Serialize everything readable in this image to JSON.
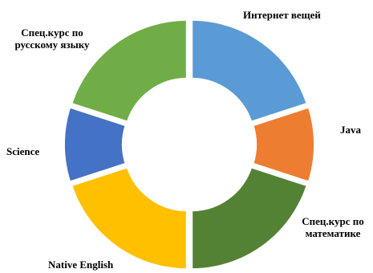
{
  "chart_data": {
    "type": "pie",
    "donut": true,
    "slices": [
      {
        "label": "Интернет вещей",
        "value": 20,
        "color": "#5B9BD5"
      },
      {
        "label": "Java",
        "value": 10,
        "color": "#ED7D31"
      },
      {
        "label": "Спец.курс по математике",
        "value": 20,
        "color": "#548235"
      },
      {
        "label": "Native English",
        "value": 20,
        "color": "#FFC000"
      },
      {
        "label": "Science",
        "value": 10,
        "color": "#4472C4"
      },
      {
        "label": "Спец.курс по русскому языку",
        "value": 20,
        "color": "#70AD47"
      }
    ]
  },
  "labels": {
    "internet": "Интернет вещей",
    "java": "Java",
    "math_line1": "Спец.курс по",
    "math_line2": "математике",
    "english": "Native English",
    "science": "Science",
    "russian_line1": "Спец.курс по",
    "russian_line2": "русскому языку"
  }
}
